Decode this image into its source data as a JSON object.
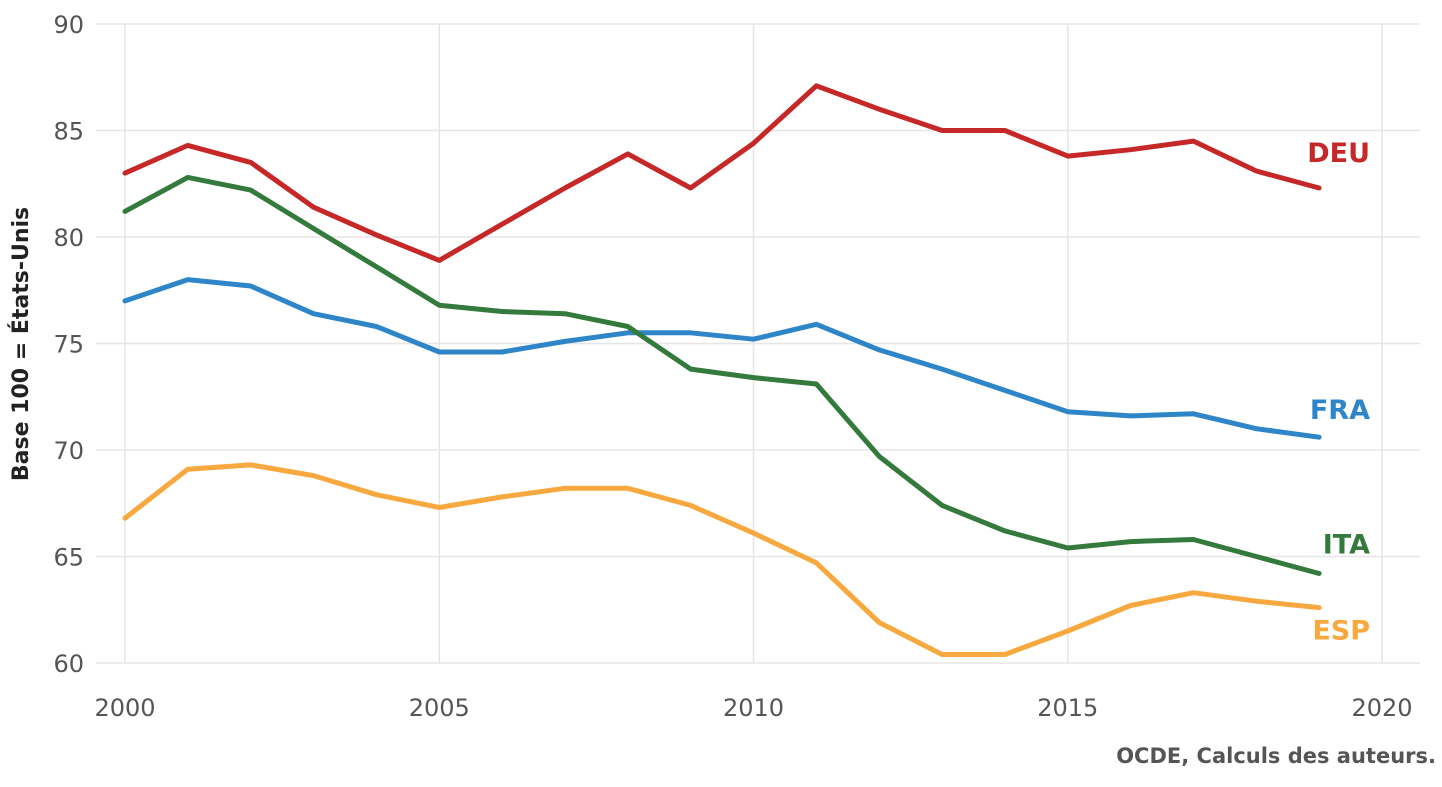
{
  "chart_data": {
    "type": "line",
    "title": "",
    "xlabel": "",
    "ylabel": "Base 100 = États-Unis",
    "xlim": [
      2000,
      2020
    ],
    "ylim": [
      60,
      90
    ],
    "x_ticks": [
      "2000",
      "2005",
      "2010",
      "2015",
      "2020"
    ],
    "y_ticks": [
      "60",
      "65",
      "70",
      "75",
      "80",
      "85",
      "90"
    ],
    "grid": true,
    "legend": "direct-labels-right",
    "caption": "OCDE, Calculs des auteurs.",
    "x": [
      2000,
      2001,
      2002,
      2003,
      2004,
      2005,
      2006,
      2007,
      2008,
      2009,
      2010,
      2011,
      2012,
      2013,
      2014,
      2015,
      2016,
      2017,
      2018,
      2019
    ],
    "series": [
      {
        "name": "DEU",
        "color": "#c62828",
        "values": [
          83.0,
          84.3,
          83.5,
          81.4,
          80.1,
          78.9,
          80.6,
          82.3,
          83.9,
          82.3,
          84.4,
          87.1,
          86.0,
          85.0,
          85.0,
          83.8,
          84.1,
          84.5,
          83.1,
          82.3
        ]
      },
      {
        "name": "FRA",
        "color": "#2e86c9",
        "values": [
          77.0,
          78.0,
          77.7,
          76.4,
          75.8,
          74.6,
          74.6,
          75.1,
          75.5,
          75.5,
          75.2,
          75.9,
          74.7,
          73.8,
          72.8,
          71.8,
          71.6,
          71.7,
          71.0,
          70.6
        ]
      },
      {
        "name": "ITA",
        "color": "#347a3c",
        "values": [
          81.2,
          82.8,
          82.2,
          80.4,
          78.6,
          76.8,
          76.5,
          76.4,
          75.8,
          73.8,
          73.4,
          73.1,
          69.7,
          67.4,
          66.2,
          65.4,
          65.7,
          65.8,
          65.0,
          64.2
        ]
      },
      {
        "name": "ESP",
        "color": "#f7a83e",
        "values": [
          66.8,
          69.1,
          69.3,
          68.8,
          67.9,
          67.3,
          67.8,
          68.2,
          68.2,
          67.4,
          66.1,
          64.7,
          61.9,
          60.4,
          60.4,
          61.5,
          62.7,
          63.3,
          62.9,
          62.6
        ]
      }
    ]
  }
}
